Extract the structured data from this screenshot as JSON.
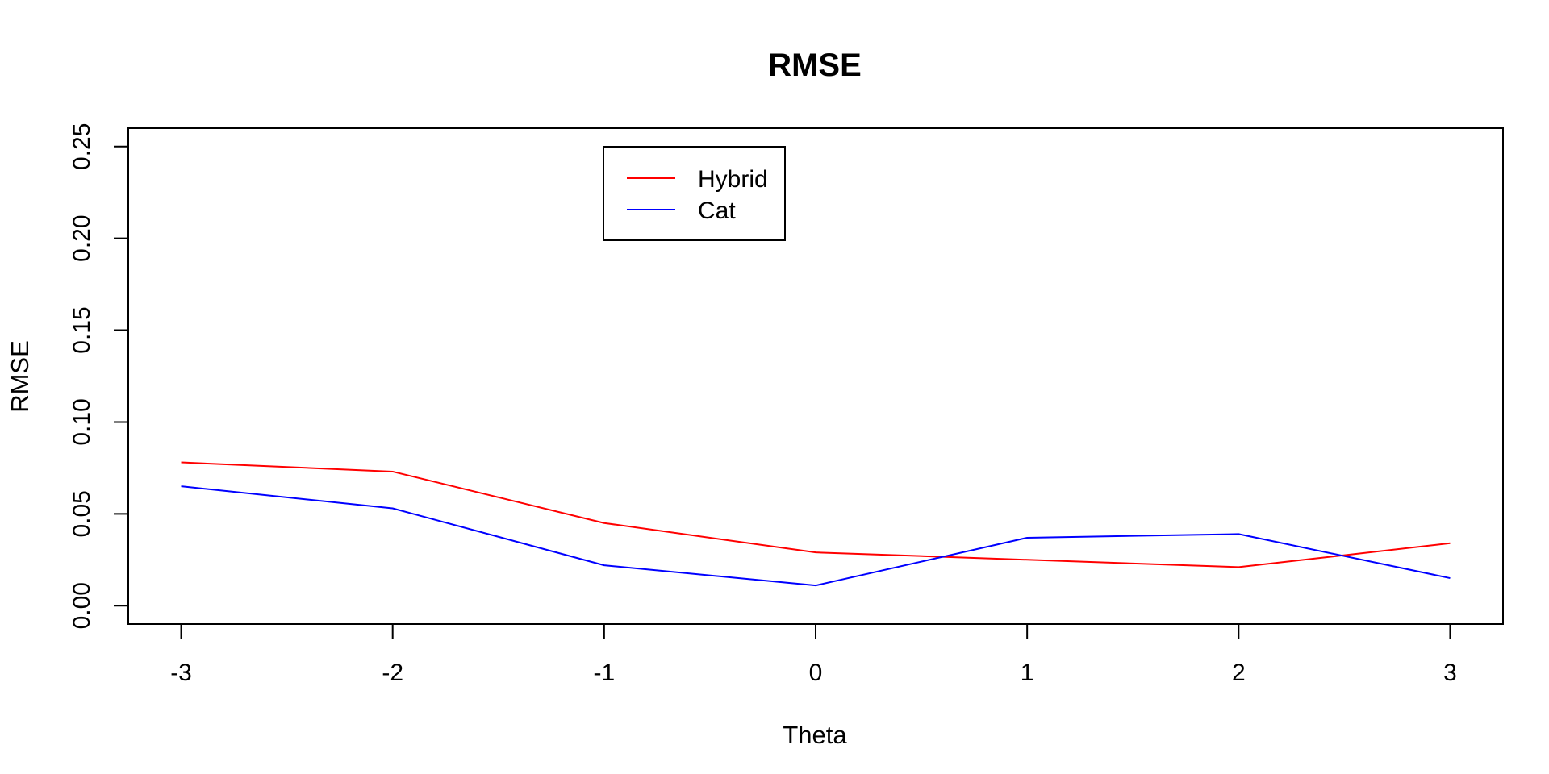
{
  "chart_data": {
    "type": "line",
    "title": "RMSE",
    "xlabel": "Theta",
    "ylabel": "RMSE",
    "x": [
      -3,
      -2,
      -1,
      0,
      1,
      2,
      3
    ],
    "xlim": [
      -3.25,
      3.25
    ],
    "ylim": [
      -0.01,
      0.26
    ],
    "xticks": [
      "-3",
      "-2",
      "-1",
      "0",
      "1",
      "2",
      "3"
    ],
    "yticks": [
      "0.00",
      "0.05",
      "0.10",
      "0.15",
      "0.20",
      "0.25"
    ],
    "ytick_values": [
      0.0,
      0.05,
      0.1,
      0.15,
      0.2,
      0.25
    ],
    "grid": false,
    "legend_position": "top-left",
    "series": [
      {
        "name": "Hybrid",
        "color": "#ff0000",
        "values": [
          0.078,
          0.073,
          0.045,
          0.029,
          0.025,
          0.021,
          0.034
        ]
      },
      {
        "name": "Cat",
        "color": "#0000ff",
        "values": [
          0.065,
          0.053,
          0.022,
          0.011,
          0.037,
          0.039,
          0.015
        ]
      }
    ]
  }
}
